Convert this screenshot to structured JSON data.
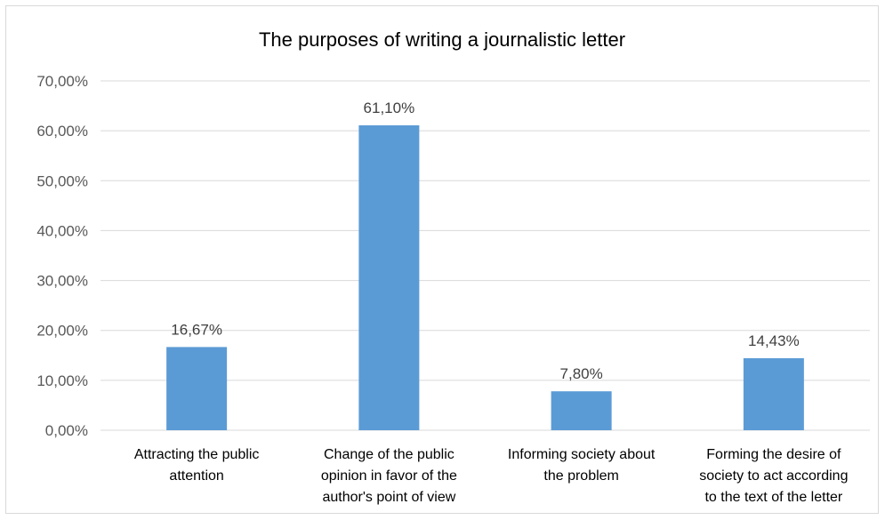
{
  "chart_data": {
    "type": "bar",
    "title": "The purposes of writing a journalistic letter",
    "xlabel": "",
    "ylabel": "",
    "categories": [
      [
        "Attracting the public",
        "attention"
      ],
      [
        "Change of the public",
        "opinion in favor of the",
        "author's point of view"
      ],
      [
        "Informing society about",
        "the problem"
      ],
      [
        "Forming the desire of",
        "society to act according",
        "to the text of the letter"
      ]
    ],
    "values": [
      16.67,
      61.1,
      7.8,
      14.43
    ],
    "data_labels": [
      "16,67%",
      "61,10%",
      "7,80%",
      "14,43%"
    ],
    "ylim": [
      0,
      70
    ],
    "y_ticks": [
      0,
      10,
      20,
      30,
      40,
      50,
      60,
      70
    ],
    "y_tick_labels": [
      "0,00%",
      "10,00%",
      "20,00%",
      "30,00%",
      "40,00%",
      "50,00%",
      "60,00%",
      "70,00%"
    ],
    "grid": true,
    "legend": "none",
    "bar_color": "#5b9bd5",
    "grid_color": "#d9d9d9"
  }
}
